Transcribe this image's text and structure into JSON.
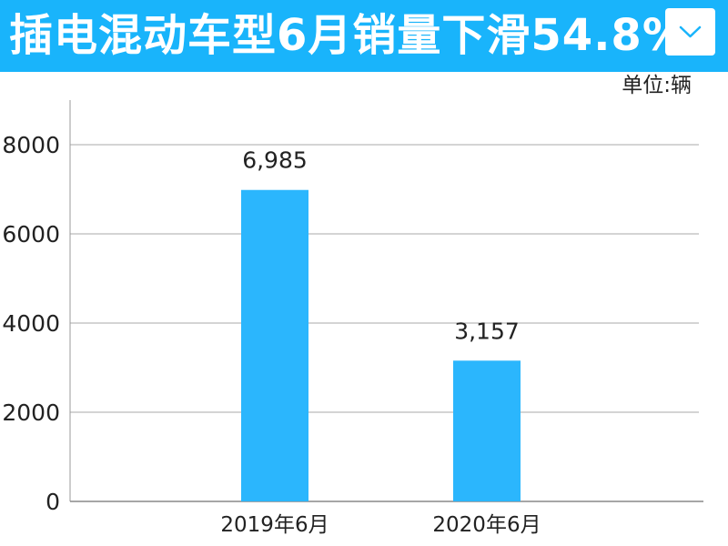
{
  "header": {
    "title": "插电混动车型6月销量下滑54.8%",
    "background_color": "#19b4fb",
    "dropdown_icon": "chevron-down-icon"
  },
  "unit_label": "单位:辆",
  "chart_data": {
    "type": "bar",
    "title": "插电混动车型6月销量下滑54.8%",
    "xlabel": "",
    "ylabel": "",
    "categories": [
      "2019年6月",
      "2020年6月"
    ],
    "values": [
      6985,
      3157
    ],
    "data_labels": [
      "6,985",
      "3,157"
    ],
    "y_ticks": [
      0,
      2000,
      4000,
      6000,
      8000
    ],
    "ylim": [
      0,
      9000
    ],
    "grid": true,
    "bar_color": "#2bb6fd",
    "grid_color": "#aaaaaa"
  }
}
